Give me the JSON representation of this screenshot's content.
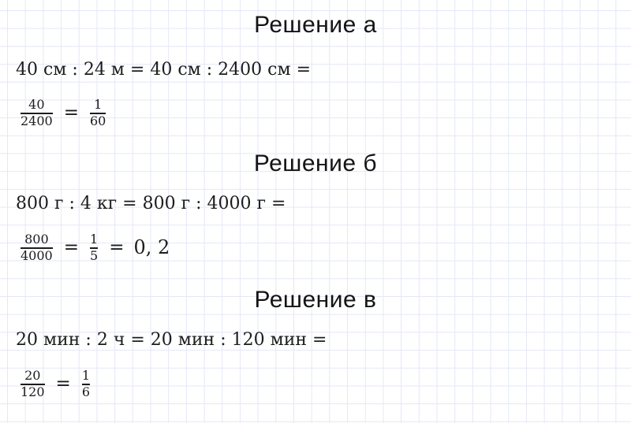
{
  "equals": "=",
  "sections": [
    {
      "title": "Решение а",
      "expression": "40 см : 24 м = 40 см : 2400 см =",
      "fractions": [
        {
          "numerator": "40",
          "denominator": "2400"
        },
        {
          "numerator": "1",
          "denominator": "60"
        }
      ]
    },
    {
      "title": "Решение б",
      "expression": "800 г : 4 кг = 800 г : 4000 г =",
      "fractions": [
        {
          "numerator": "800",
          "denominator": "4000"
        },
        {
          "numerator": "1",
          "denominator": "5"
        }
      ],
      "result": "0, 2"
    },
    {
      "title": "Решение в",
      "expression": "20 мин : 2 ч = 20 мин : 120 мин =",
      "fractions": [
        {
          "numerator": "20",
          "denominator": "120"
        },
        {
          "numerator": "1",
          "denominator": "6"
        }
      ]
    }
  ],
  "colors": {
    "background": "#ffffff",
    "grid_line": "#e4e8f7",
    "text": "#1c1c1c"
  }
}
